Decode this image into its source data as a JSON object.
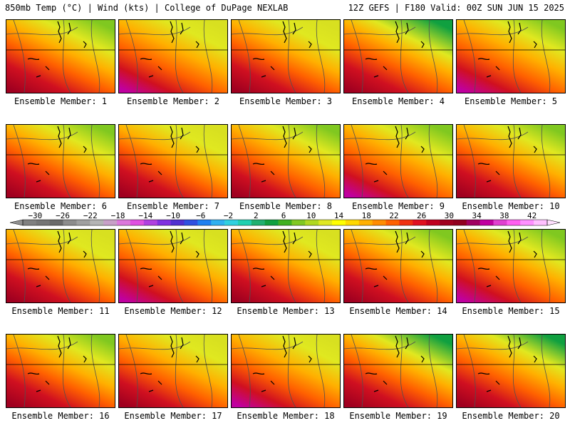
{
  "header": {
    "left": "850mb Temp (°C) | Wind (kts) | College of DuPage NEXLAB",
    "right": "12Z GEFS | F180 Valid: 00Z SUN JUN 15 2025"
  },
  "members": [
    {
      "label": "Ensemble Member: 1",
      "warmth": 0.55,
      "cool_north": 0.55
    },
    {
      "label": "Ensemble Member: 2",
      "warmth": 0.75,
      "cool_north": 0.25
    },
    {
      "label": "Ensemble Member: 3",
      "warmth": 0.55,
      "cool_north": 0.35
    },
    {
      "label": "Ensemble Member: 4",
      "warmth": 0.55,
      "cool_north": 0.8
    },
    {
      "label": "Ensemble Member: 5",
      "warmth": 0.7,
      "cool_north": 0.45
    },
    {
      "label": "Ensemble Member: 6",
      "warmth": 0.55,
      "cool_north": 0.55
    },
    {
      "label": "Ensemble Member: 7",
      "warmth": 0.5,
      "cool_north": 0.3
    },
    {
      "label": "Ensemble Member: 8",
      "warmth": 0.65,
      "cool_north": 0.5
    },
    {
      "label": "Ensemble Member: 9",
      "warmth": 0.75,
      "cool_north": 0.6
    },
    {
      "label": "Ensemble Member: 10",
      "warmth": 0.55,
      "cool_north": 0.45
    },
    {
      "label": "Ensemble Member: 11",
      "warmth": 0.55,
      "cool_north": 0.4
    },
    {
      "label": "Ensemble Member: 12",
      "warmth": 0.7,
      "cool_north": 0.2
    },
    {
      "label": "Ensemble Member: 13",
      "warmth": 0.55,
      "cool_north": 0.2
    },
    {
      "label": "Ensemble Member: 14",
      "warmth": 0.55,
      "cool_north": 0.55
    },
    {
      "label": "Ensemble Member: 15",
      "warmth": 0.7,
      "cool_north": 0.6
    },
    {
      "label": "Ensemble Member: 16",
      "warmth": 0.5,
      "cool_north": 0.45
    },
    {
      "label": "Ensemble Member: 17",
      "warmth": 0.65,
      "cool_north": 0.25
    },
    {
      "label": "Ensemble Member: 18",
      "warmth": 0.7,
      "cool_north": 0.2
    },
    {
      "label": "Ensemble Member: 19",
      "warmth": 0.5,
      "cool_north": 0.8
    },
    {
      "label": "Ensemble Member: 20",
      "warmth": 0.6,
      "cool_north": 0.65
    }
  ],
  "colorbar": {
    "ticks": [
      "−30",
      "−26",
      "−22",
      "−18",
      "−14",
      "−10",
      "−6",
      "−2",
      "2",
      "6",
      "10",
      "14",
      "18",
      "22",
      "26",
      "30",
      "34",
      "38",
      "42"
    ],
    "colors": [
      "#808080",
      "#757575",
      "#6a6a6a",
      "#8c8c8c",
      "#a0a0a0",
      "#b4b4b4",
      "#c8a0c8",
      "#dc78dc",
      "#e050e0",
      "#b040e0",
      "#8030e0",
      "#5030d0",
      "#3050e0",
      "#2080f0",
      "#30b0f0",
      "#30d0e0",
      "#20d0b0",
      "#20b070",
      "#10a040",
      "#40b020",
      "#80c820",
      "#b0d820",
      "#e0e820",
      "#ffff00",
      "#ffd800",
      "#ffb000",
      "#ff8c00",
      "#ff6000",
      "#f03010",
      "#e01020",
      "#c00020",
      "#a00020",
      "#900020",
      "#a00060",
      "#c000a0",
      "#e040d0",
      "#ff60f0",
      "#ff90ff",
      "#ffc0ff"
    ]
  }
}
